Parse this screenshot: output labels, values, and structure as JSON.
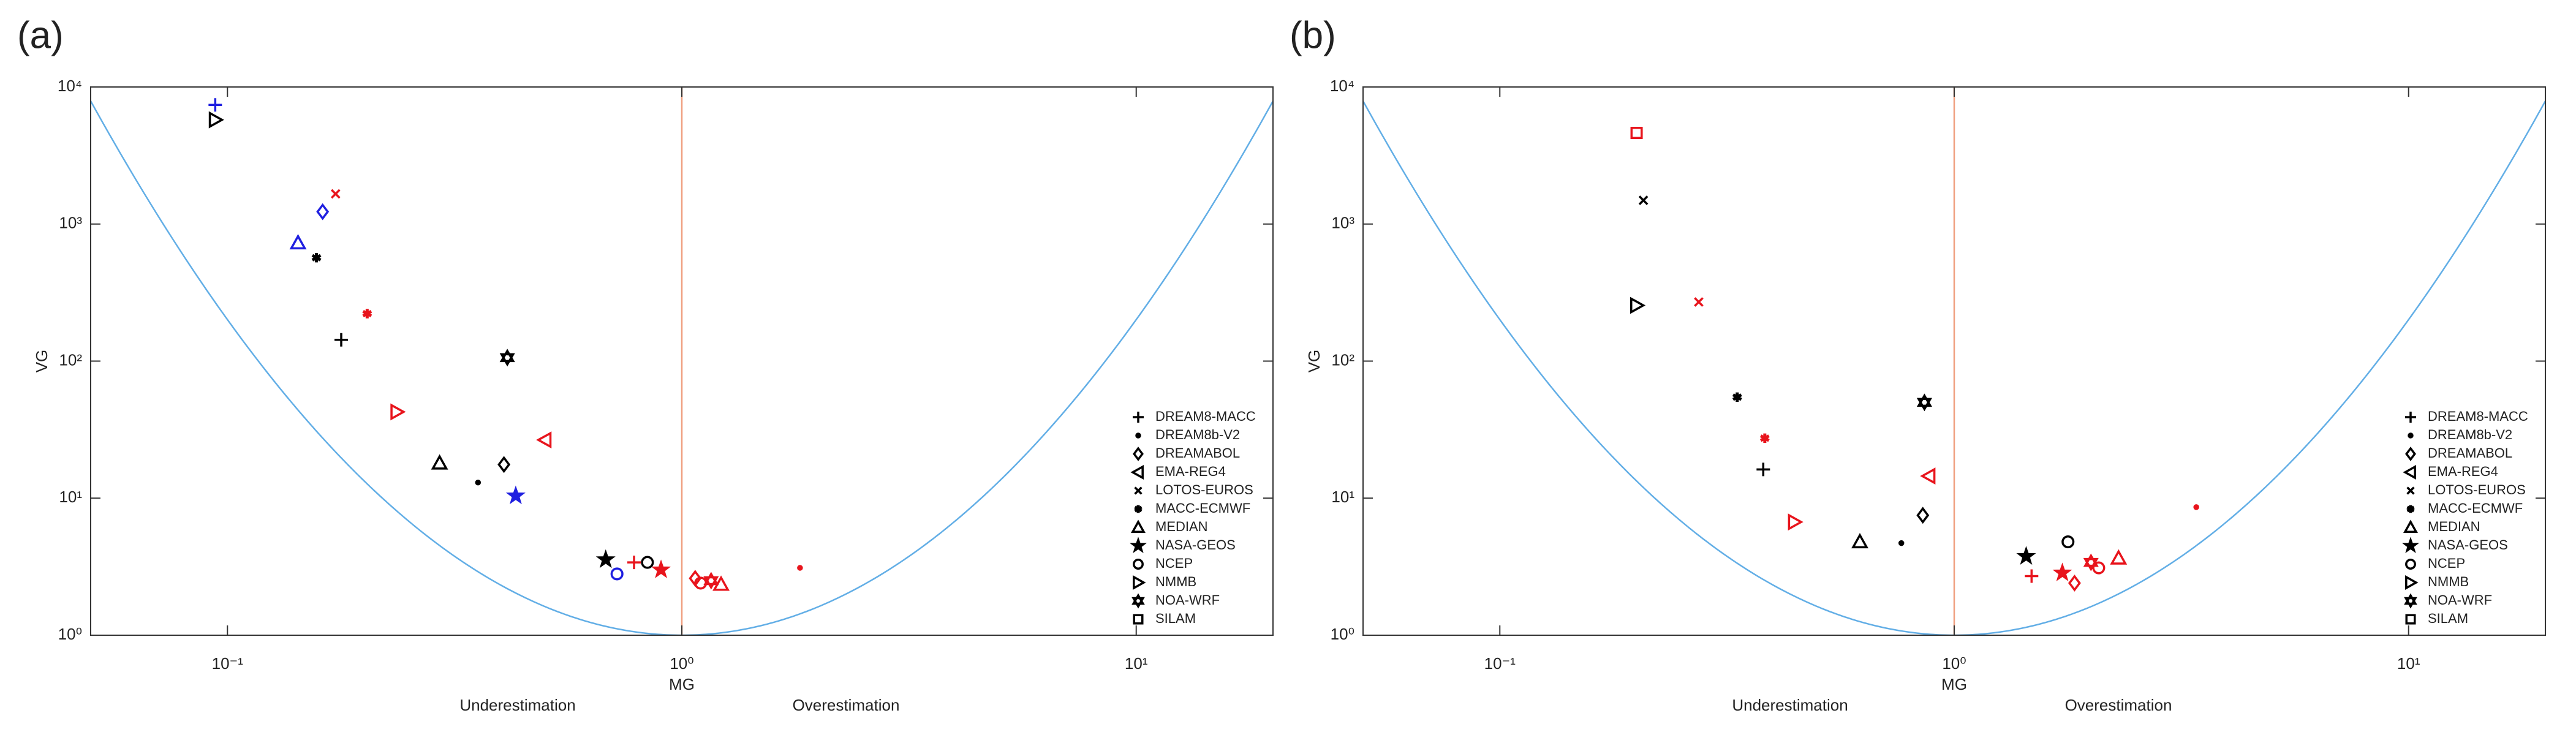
{
  "chart_data": [
    {
      "type": "scatter",
      "panel_label": "(a)",
      "x_label": "MG",
      "y_label": "VG",
      "annotations": [
        "Underestimation",
        "Overestimation"
      ],
      "log_x": true,
      "log_y": true,
      "xlim": [
        0.05,
        20
      ],
      "ylim": [
        1,
        10000
      ],
      "xticks": [
        {
          "value": 0.1,
          "label": "10⁻¹"
        },
        {
          "value": 1,
          "label": "10⁰"
        },
        {
          "value": 10,
          "label": "10¹"
        }
      ],
      "yticks": [
        {
          "value": 1,
          "label": "10⁰"
        },
        {
          "value": 10,
          "label": "10¹"
        },
        {
          "value": 100,
          "label": "10²"
        },
        {
          "value": 1000,
          "label": "10³"
        },
        {
          "value": 10000,
          "label": "10⁴"
        }
      ],
      "reference_x": 1,
      "reference_color": "#f0a080",
      "curve_color": "#62aee6",
      "legend": "right",
      "series": [
        {
          "name": "DREAM8-MACC",
          "marker": "plus",
          "color": "#000000",
          "x": [
            0.094,
            0.178,
            0.785
          ],
          "values": [
            7400,
            143,
            3.4
          ],
          "point_colors": [
            "#1f1fe0",
            "#000000",
            "#e8141c"
          ]
        },
        {
          "name": "DREAM8b-V2",
          "marker": "dot",
          "color": "#000000",
          "x": [
            0.356,
            1.82
          ],
          "values": [
            13,
            3.1
          ],
          "point_colors": [
            "#000000",
            "#e8141c"
          ]
        },
        {
          "name": "DREAMABOL",
          "marker": "diamond",
          "color": "#000000",
          "x": [
            0.162,
            0.406,
            1.07
          ],
          "values": [
            1230,
            17.6,
            2.6
          ],
          "point_colors": [
            "#1f1fe0",
            "#000000",
            "#e8141c"
          ]
        },
        {
          "name": "EMA-REG4",
          "marker": "triangle-left",
          "color": "#000000",
          "x": [
            0.5
          ],
          "values": [
            26.6
          ],
          "point_colors": [
            "#e8141c"
          ]
        },
        {
          "name": "LOTOS-EUROS",
          "marker": "x",
          "color": "#000000",
          "x": [
            0.173
          ],
          "values": [
            1660
          ],
          "point_colors": [
            "#e8141c"
          ]
        },
        {
          "name": "MACC-ECMWF",
          "marker": "asterisk",
          "color": "#000000",
          "x": [
            0.157,
            0.203
          ],
          "values": [
            568,
            222
          ],
          "point_colors": [
            "#000000",
            "#e8141c"
          ]
        },
        {
          "name": "MEDIAN",
          "marker": "triangle-up",
          "color": "#000000",
          "x": [
            0.143,
            0.293,
            1.22
          ],
          "values": [
            728,
            18,
            2.35
          ],
          "point_colors": [
            "#1f1fe0",
            "#000000",
            "#e8141c"
          ]
        },
        {
          "name": "NASA-GEOS",
          "marker": "star",
          "color": "#000000",
          "x": [
            0.431,
            0.68,
            0.9
          ],
          "values": [
            10.4,
            3.56,
            3
          ],
          "point_colors": [
            "#1f1fe0",
            "#000000",
            "#e8141c"
          ]
        },
        {
          "name": "NCEP",
          "marker": "circle",
          "color": "#000000",
          "x": [
            0.72,
            0.84,
            1.1
          ],
          "values": [
            2.8,
            3.4,
            2.4
          ],
          "point_colors": [
            "#1f1fe0",
            "#000000",
            "#e8141c"
          ]
        },
        {
          "name": "NMMB",
          "marker": "triangle-right",
          "color": "#000000",
          "x": [
            0.094,
            0.236
          ],
          "values": [
            5760,
            42.6
          ],
          "point_colors": [
            "#000000",
            "#e8141c"
          ]
        },
        {
          "name": "NOA-WRF",
          "marker": "hexagram",
          "color": "#000000",
          "x": [
            0.413,
            1.16
          ],
          "values": [
            106,
            2.5
          ],
          "point_colors": [
            "#000000",
            "#e8141c"
          ]
        },
        {
          "name": "SILAM",
          "marker": "square",
          "color": "#000000",
          "x": [],
          "values": [],
          "point_colors": []
        }
      ]
    },
    {
      "type": "scatter",
      "panel_label": "(b)",
      "x_label": "MG",
      "y_label": "VG",
      "annotations": [
        "Underestimation",
        "Overestimation"
      ],
      "log_x": true,
      "log_y": true,
      "xlim": [
        0.05,
        20
      ],
      "ylim": [
        1,
        10000
      ],
      "xticks": [
        {
          "value": 0.1,
          "label": "10⁻¹"
        },
        {
          "value": 1,
          "label": "10⁰"
        },
        {
          "value": 10,
          "label": "10¹"
        }
      ],
      "yticks": [
        {
          "value": 1,
          "label": "10⁰"
        },
        {
          "value": 10,
          "label": "10¹"
        },
        {
          "value": 100,
          "label": "10²"
        },
        {
          "value": 1000,
          "label": "10³"
        },
        {
          "value": 10000,
          "label": "10⁴"
        }
      ],
      "reference_x": 1,
      "reference_color": "#f0a080",
      "curve_color": "#62aee6",
      "legend": "right",
      "series": [
        {
          "name": "DREAM8-MACC",
          "marker": "plus",
          "color": "#000000",
          "x": [
            0.38,
            1.48
          ],
          "values": [
            16.2,
            2.7
          ],
          "point_colors": [
            "#000000",
            "#e8141c"
          ]
        },
        {
          "name": "DREAM8b-V2",
          "marker": "dot",
          "color": "#000000",
          "x": [
            0.765,
            3.41
          ],
          "values": [
            4.7,
            8.6
          ],
          "point_colors": [
            "#000000",
            "#e8141c"
          ]
        },
        {
          "name": "DREAMABOL",
          "marker": "diamond",
          "color": "#000000",
          "x": [
            0.853,
            1.84
          ],
          "values": [
            7.5,
            2.4
          ],
          "point_colors": [
            "#000000",
            "#e8141c"
          ]
        },
        {
          "name": "EMA-REG4",
          "marker": "triangle-left",
          "color": "#000000",
          "x": [
            0.88
          ],
          "values": [
            14.5
          ],
          "point_colors": [
            "#e8141c"
          ]
        },
        {
          "name": "LOTOS-EUROS",
          "marker": "x",
          "color": "#000000",
          "x": [
            0.207,
            0.274
          ],
          "values": [
            1490,
            270
          ],
          "point_colors": [
            "#000000",
            "#e8141c"
          ]
        },
        {
          "name": "MACC-ECMWF",
          "marker": "asterisk",
          "color": "#000000",
          "x": [
            0.333,
            0.383
          ],
          "values": [
            54.6,
            27.4
          ],
          "point_colors": [
            "#000000",
            "#e8141c"
          ]
        },
        {
          "name": "MEDIAN",
          "marker": "triangle-up",
          "color": "#000000",
          "x": [
            0.62,
            2.3
          ],
          "values": [
            4.8,
            3.65
          ],
          "point_colors": [
            "#000000",
            "#e8141c"
          ]
        },
        {
          "name": "NASA-GEOS",
          "marker": "star",
          "color": "#000000",
          "x": [
            1.44,
            1.73
          ],
          "values": [
            3.76,
            2.85
          ],
          "point_colors": [
            "#000000",
            "#e8141c"
          ]
        },
        {
          "name": "NCEP",
          "marker": "circle",
          "color": "#000000",
          "x": [
            1.78,
            2.08
          ],
          "values": [
            4.8,
            3.1
          ],
          "point_colors": [
            "#000000",
            "#e8141c"
          ]
        },
        {
          "name": "NMMB",
          "marker": "triangle-right",
          "color": "#000000",
          "x": [
            0.2,
            0.445
          ],
          "values": [
            255,
            6.7
          ],
          "point_colors": [
            "#000000",
            "#e8141c"
          ]
        },
        {
          "name": "NOA-WRF",
          "marker": "hexagram",
          "color": "#000000",
          "x": [
            0.86,
            2.0
          ],
          "values": [
            50,
            3.4
          ],
          "point_colors": [
            "#000000",
            "#e8141c"
          ]
        },
        {
          "name": "SILAM",
          "marker": "square",
          "color": "#000000",
          "x": [
            0.2
          ],
          "values": [
            4620
          ],
          "point_colors": [
            "#e8141c"
          ]
        }
      ]
    }
  ]
}
